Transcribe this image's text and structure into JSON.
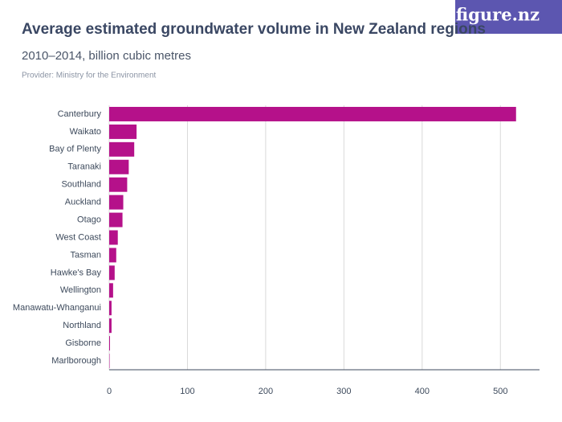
{
  "brand": "figure.nz",
  "chart_data": {
    "type": "barh",
    "title": "Average estimated groundwater volume in New Zealand regions",
    "subtitle": "2010–2014, billion cubic metres",
    "provider": "Provider: Ministry for the Environment",
    "categories": [
      "Canterbury",
      "Waikato",
      "Bay of Plenty",
      "Taranaki",
      "Southland",
      "Auckland",
      "Otago",
      "West Coast",
      "Tasman",
      "Hawke's Bay",
      "Wellington",
      "Manawatu-Whanganui",
      "Northland",
      "Gisborne",
      "Marlborough"
    ],
    "values": [
      520,
      35,
      32,
      25,
      23,
      18,
      17,
      11,
      9,
      7,
      5,
      3,
      3,
      1,
      0.5
    ],
    "color": "#b5118a",
    "xlim": [
      0,
      550
    ],
    "xticks": [
      0,
      100,
      200,
      300,
      400,
      500
    ],
    "grid": true
  }
}
